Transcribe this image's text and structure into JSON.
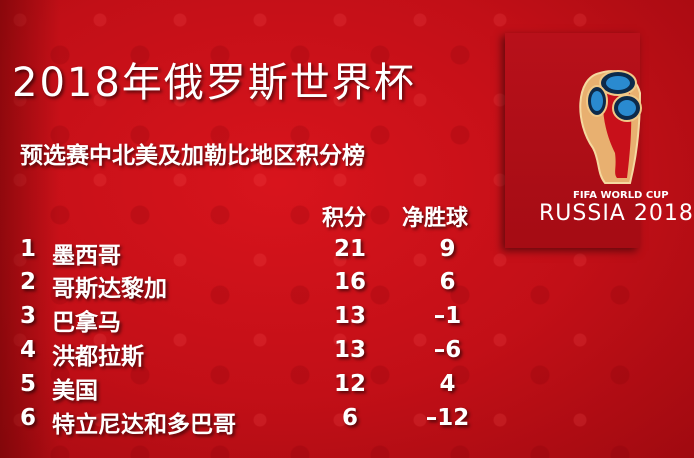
{
  "title": "2018年俄罗斯世界杯",
  "subtitle": "预选赛中北美及加勒比地区积分榜",
  "columns": {
    "points": "积分",
    "goal_difference": "净胜球"
  },
  "rows": [
    {
      "rank": "1",
      "team": "墨西哥",
      "points": "21",
      "gd": "9"
    },
    {
      "rank": "2",
      "team": "哥斯达黎加",
      "points": "16",
      "gd": "6"
    },
    {
      "rank": "3",
      "team": "巴拿马",
      "points": "13",
      "gd": "–1"
    },
    {
      "rank": "4",
      "team": "洪都拉斯",
      "points": "13",
      "gd": "–6"
    },
    {
      "rank": "5",
      "team": "美国",
      "points": "12",
      "gd": "4"
    },
    {
      "rank": "6",
      "team": "特立尼达和多巴哥",
      "points": "6",
      "gd": "–12"
    }
  ],
  "logo": {
    "line1": "FIFA WORLD CUP",
    "line2": "RUSSIA 2018"
  },
  "colors": {
    "background": "#c20f17",
    "text": "#ffffff",
    "logo_panel": "#b0101a"
  }
}
